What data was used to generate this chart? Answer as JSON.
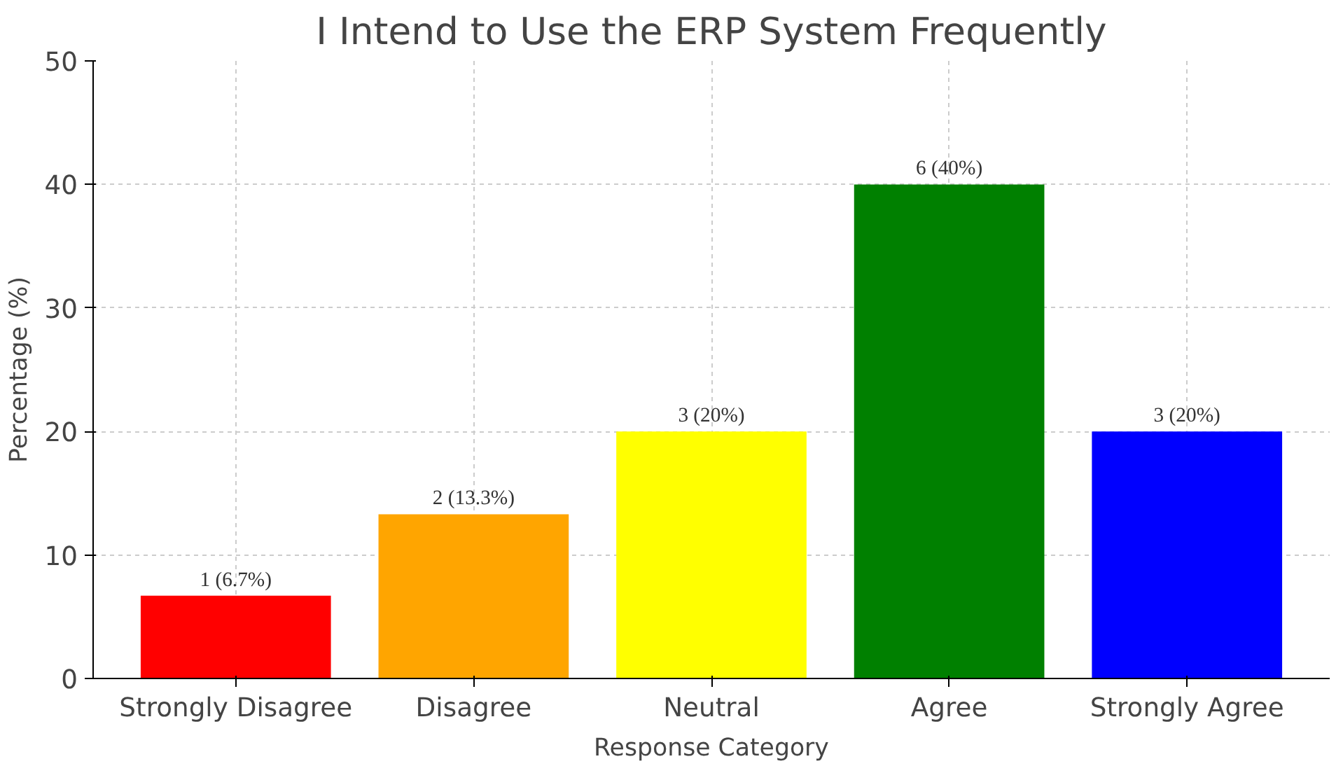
{
  "chart_data": {
    "type": "bar",
    "title": "I Intend to Use the ERP System Frequently",
    "xlabel": "Response Category",
    "ylabel": "Percentage (%)",
    "categories": [
      "Strongly Disagree",
      "Disagree",
      "Neutral",
      "Agree",
      "Strongly Agree"
    ],
    "values": [
      6.7,
      13.3,
      20,
      40,
      20
    ],
    "colors": [
      "#ff0000",
      "#ffa500",
      "#ffff00",
      "#008000",
      "#0000ff"
    ],
    "value_labels": [
      "1 (6.7%)",
      "2 (13.3%)",
      "3 (20%)",
      "6 (40%)",
      "3 (20%)"
    ],
    "ylim": [
      0,
      50
    ],
    "yticks": [
      0,
      10,
      20,
      30,
      40,
      50
    ],
    "grid": true
  }
}
